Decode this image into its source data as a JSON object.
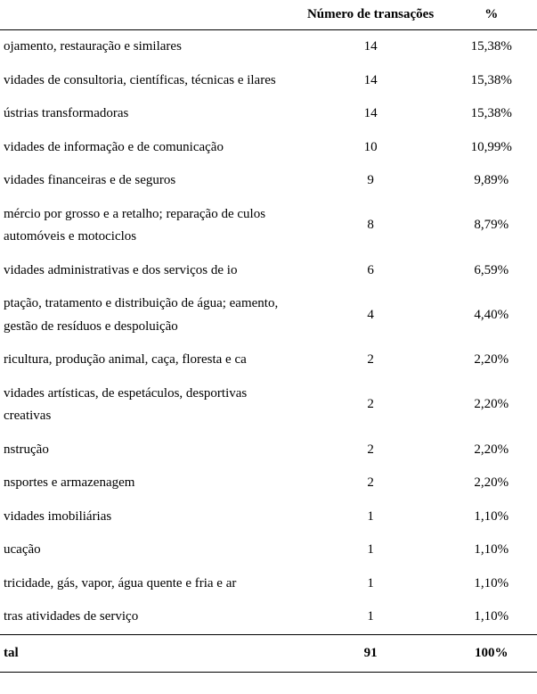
{
  "table": {
    "headers": {
      "label": "",
      "count": "Número de transações",
      "pct": "%"
    },
    "rows": [
      {
        "label": "ojamento, restauração e similares",
        "count": "14",
        "pct": "15,38%"
      },
      {
        "label": "vidades de consultoria, científicas, técnicas e ilares",
        "count": "14",
        "pct": "15,38%"
      },
      {
        "label": "ústrias transformadoras",
        "count": "14",
        "pct": "15,38%"
      },
      {
        "label": "vidades de informação e de comunicação",
        "count": "10",
        "pct": "10,99%"
      },
      {
        "label": "vidades financeiras e de seguros",
        "count": "9",
        "pct": "9,89%"
      },
      {
        "label": "mércio por grosso e a retalho; reparação de culos automóveis e motociclos",
        "count": "8",
        "pct": "8,79%"
      },
      {
        "label": "vidades administrativas e dos serviços de io",
        "count": "6",
        "pct": "6,59%"
      },
      {
        "label": "ptação, tratamento e distribuição de água; eamento, gestão de resíduos e despoluição",
        "count": "4",
        "pct": "4,40%"
      },
      {
        "label": "ricultura, produção animal, caça, floresta e ca",
        "count": "2",
        "pct": "2,20%"
      },
      {
        "label": "vidades artísticas, de espetáculos, desportivas creativas",
        "count": "2",
        "pct": "2,20%"
      },
      {
        "label": "nstrução",
        "count": "2",
        "pct": "2,20%"
      },
      {
        "label": "nsportes e armazenagem",
        "count": "2",
        "pct": "2,20%"
      },
      {
        "label": "vidades imobiliárias",
        "count": "1",
        "pct": "1,10%"
      },
      {
        "label": "ucação",
        "count": "1",
        "pct": "1,10%"
      },
      {
        "label": "tricidade, gás, vapor, água quente e fria e ar",
        "count": "1",
        "pct": "1,10%"
      },
      {
        "label": "tras atividades de serviço",
        "count": "1",
        "pct": "1,10%"
      }
    ],
    "total": {
      "label": "tal",
      "count": "91",
      "pct": "100%"
    },
    "styling": {
      "font_family": "Times New Roman",
      "font_size_pt": 15,
      "text_color": "#000000",
      "background_color": "#ffffff",
      "border_color": "#000000",
      "line_height": 1.7
    }
  }
}
